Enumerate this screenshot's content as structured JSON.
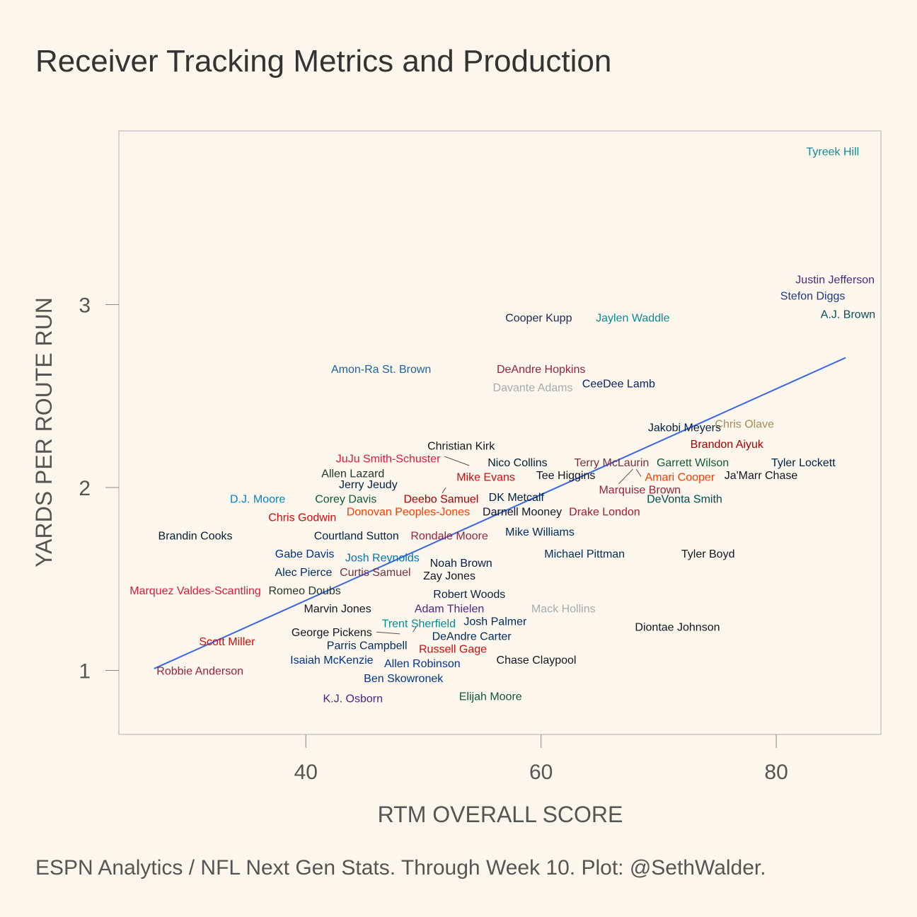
{
  "chart_data": {
    "type": "scatter",
    "title": "Receiver Tracking Metrics and Production",
    "caption": "ESPN Analytics / NFL Next Gen Stats. Through Week 10. Plot: @SethWalder.",
    "xlabel": "RTM OVERALL SCORE",
    "ylabel": "YARDS PER ROUTE RUN",
    "xlim": [
      24.1,
      88.9
    ],
    "ylim": [
      0.65,
      3.95
    ],
    "xticks": [
      40,
      60,
      80
    ],
    "yticks": [
      1,
      2,
      3
    ],
    "grid": false,
    "trend_line": {
      "color": "#3a66e6",
      "x": [
        27.1,
        85.9
      ],
      "y": [
        1.01,
        2.71
      ]
    },
    "points": [
      {
        "name": "Tyreek Hill",
        "x": 84.8,
        "y": 3.84,
        "color": "#0f8a95"
      },
      {
        "name": "Justin Jefferson",
        "x": 85.0,
        "y": 3.14,
        "color": "#4a2a85"
      },
      {
        "name": "Stefon Diggs",
        "x": 83.1,
        "y": 3.05,
        "color": "#1b3a8c"
      },
      {
        "name": "A.J. Brown",
        "x": 86.1,
        "y": 2.95,
        "color": "#0b4f5c"
      },
      {
        "name": "Cooper Kupp",
        "x": 59.8,
        "y": 2.93,
        "color": "#1b2a57"
      },
      {
        "name": "Jaylen Waddle",
        "x": 67.8,
        "y": 2.93,
        "color": "#0f8a95"
      },
      {
        "name": "Amon-Ra St. Brown",
        "x": 46.4,
        "y": 2.65,
        "color": "#1f62a0"
      },
      {
        "name": "DeAndre Hopkins",
        "x": 60.0,
        "y": 2.65,
        "color": "#97233f"
      },
      {
        "name": "Davante Adams",
        "x": 59.3,
        "y": 2.55,
        "color": "#a5acaf"
      },
      {
        "name": "CeeDee Lamb",
        "x": 66.6,
        "y": 2.57,
        "color": "#0b2265"
      },
      {
        "name": "Jakobi Meyers",
        "x": 72.2,
        "y": 2.33,
        "color": "#002244"
      },
      {
        "name": "Chris Olave",
        "x": 77.3,
        "y": 2.35,
        "color": "#a28d5b"
      },
      {
        "name": "Brandon Aiyuk",
        "x": 75.8,
        "y": 2.24,
        "color": "#aa0000"
      },
      {
        "name": "Christian Kirk",
        "x": 53.2,
        "y": 2.23,
        "color": "#101820"
      },
      {
        "name": "JuJu Smith-Schuster",
        "x": 47.0,
        "y": 2.16,
        "color": "#e31837"
      },
      {
        "name": "Nico Collins",
        "x": 58.0,
        "y": 2.14,
        "color": "#03202f"
      },
      {
        "name": "Terry McLaurin",
        "x": 66.0,
        "y": 2.14,
        "color": "#773141"
      },
      {
        "name": "Garrett Wilson",
        "x": 72.9,
        "y": 2.14,
        "color": "#125740"
      },
      {
        "name": "Tyler Lockett",
        "x": 82.3,
        "y": 2.14,
        "color": "#002244"
      },
      {
        "name": "Allen Lazard",
        "x": 44.0,
        "y": 2.08,
        "color": "#203731"
      },
      {
        "name": "Mike Evans",
        "x": 55.3,
        "y": 2.06,
        "color": "#d50a0a"
      },
      {
        "name": "Tee Higgins",
        "x": 62.1,
        "y": 2.07,
        "color": "#101820"
      },
      {
        "name": "Amari Cooper",
        "x": 71.8,
        "y": 2.06,
        "color": "#ff3c00"
      },
      {
        "name": "Ja'Marr Chase",
        "x": 78.7,
        "y": 2.07,
        "color": "#101820"
      },
      {
        "name": "Jerry Jeudy",
        "x": 45.3,
        "y": 2.02,
        "color": "#002244"
      },
      {
        "name": "Marquise Brown",
        "x": 68.4,
        "y": 1.99,
        "color": "#97233f"
      },
      {
        "name": "D.J. Moore",
        "x": 35.9,
        "y": 1.94,
        "color": "#0085ca"
      },
      {
        "name": "Corey Davis",
        "x": 43.4,
        "y": 1.94,
        "color": "#125740"
      },
      {
        "name": "Deebo Samuel",
        "x": 51.5,
        "y": 1.94,
        "color": "#aa0000"
      },
      {
        "name": "DK Metcalf",
        "x": 57.9,
        "y": 1.95,
        "color": "#002244"
      },
      {
        "name": "DeVonta Smith",
        "x": 72.2,
        "y": 1.94,
        "color": "#004c54"
      },
      {
        "name": "Chris Godwin",
        "x": 39.7,
        "y": 1.84,
        "color": "#d50a0a"
      },
      {
        "name": "Donovan Peoples-Jones",
        "x": 48.7,
        "y": 1.87,
        "color": "#ff3c00"
      },
      {
        "name": "Darnell Mooney",
        "x": 58.4,
        "y": 1.87,
        "color": "#0b162a"
      },
      {
        "name": "Drake London",
        "x": 65.4,
        "y": 1.87,
        "color": "#a71930"
      },
      {
        "name": "Brandin Cooks",
        "x": 30.6,
        "y": 1.74,
        "color": "#03202f"
      },
      {
        "name": "Courtland Sutton",
        "x": 44.3,
        "y": 1.74,
        "color": "#002244"
      },
      {
        "name": "Rondale Moore",
        "x": 52.2,
        "y": 1.74,
        "color": "#97233f"
      },
      {
        "name": "Mike Williams",
        "x": 59.9,
        "y": 1.76,
        "color": "#002a5e"
      },
      {
        "name": "Gabe Davis",
        "x": 39.9,
        "y": 1.64,
        "color": "#00338d"
      },
      {
        "name": "Josh Reynolds",
        "x": 46.5,
        "y": 1.62,
        "color": "#0076b6"
      },
      {
        "name": "Michael Pittman",
        "x": 63.7,
        "y": 1.64,
        "color": "#002c5f"
      },
      {
        "name": "Tyler Boyd",
        "x": 74.2,
        "y": 1.64,
        "color": "#101820"
      },
      {
        "name": "Noah Brown",
        "x": 53.2,
        "y": 1.59,
        "color": "#041e42"
      },
      {
        "name": "Alec Pierce",
        "x": 39.8,
        "y": 1.54,
        "color": "#002c5f"
      },
      {
        "name": "Curtis Samuel",
        "x": 45.9,
        "y": 1.54,
        "color": "#773141"
      },
      {
        "name": "Zay Jones",
        "x": 52.2,
        "y": 1.52,
        "color": "#101820"
      },
      {
        "name": "Marquez Valdes-Scantling",
        "x": 30.6,
        "y": 1.44,
        "color": "#e31837"
      },
      {
        "name": "Romeo Doubs",
        "x": 39.9,
        "y": 1.44,
        "color": "#203731"
      },
      {
        "name": "Robert Woods",
        "x": 53.9,
        "y": 1.42,
        "color": "#0c2340"
      },
      {
        "name": "Marvin Jones",
        "x": 42.7,
        "y": 1.34,
        "color": "#101820"
      },
      {
        "name": "Adam Thielen",
        "x": 52.2,
        "y": 1.34,
        "color": "#4f2683"
      },
      {
        "name": "Mack Hollins",
        "x": 61.9,
        "y": 1.34,
        "color": "#a5acaf"
      },
      {
        "name": "Josh Palmer",
        "x": 56.1,
        "y": 1.27,
        "color": "#002a5e"
      },
      {
        "name": "Trent Sherfield",
        "x": 49.6,
        "y": 1.26,
        "color": "#008e97"
      },
      {
        "name": "Diontae Johnson",
        "x": 71.6,
        "y": 1.24,
        "color": "#101820"
      },
      {
        "name": "George Pickens",
        "x": 42.2,
        "y": 1.21,
        "color": "#101820"
      },
      {
        "name": "DeAndre Carter",
        "x": 54.1,
        "y": 1.19,
        "color": "#002a5e"
      },
      {
        "name": "Scott Miller",
        "x": 33.3,
        "y": 1.16,
        "color": "#d50a0a"
      },
      {
        "name": "Parris Campbell",
        "x": 45.2,
        "y": 1.14,
        "color": "#002c5f"
      },
      {
        "name": "Russell Gage",
        "x": 52.5,
        "y": 1.12,
        "color": "#d50a0a"
      },
      {
        "name": "Isaiah McKenzie",
        "x": 42.2,
        "y": 1.06,
        "color": "#00338d"
      },
      {
        "name": "Allen Robinson",
        "x": 49.9,
        "y": 1.04,
        "color": "#003594"
      },
      {
        "name": "Chase Claypool",
        "x": 59.6,
        "y": 1.06,
        "color": "#101820"
      },
      {
        "name": "Robbie Anderson",
        "x": 31.0,
        "y": 1.0,
        "color": "#97233f"
      },
      {
        "name": "Ben Skowronek",
        "x": 48.3,
        "y": 0.96,
        "color": "#003594"
      },
      {
        "name": "K.J. Osborn",
        "x": 44.0,
        "y": 0.85,
        "color": "#4f2683"
      },
      {
        "name": "Elijah Moore",
        "x": 55.7,
        "y": 0.86,
        "color": "#125740"
      }
    ],
    "leader_lines": [
      {
        "from": [
          51.8,
          2.17
        ],
        "to": [
          53.9,
          2.12
        ]
      },
      {
        "from": [
          51.6,
          1.97
        ],
        "to": [
          51.9,
          2.0
        ]
      },
      {
        "from": [
          66.6,
          2.02
        ],
        "to": [
          67.8,
          2.1
        ]
      },
      {
        "from": [
          68.1,
          2.1
        ],
        "to": [
          68.5,
          2.06
        ]
      },
      {
        "from": [
          46.0,
          1.21
        ],
        "to": [
          48.0,
          1.2
        ]
      },
      {
        "from": [
          49.1,
          1.21
        ],
        "to": [
          49.4,
          1.24
        ]
      }
    ]
  }
}
